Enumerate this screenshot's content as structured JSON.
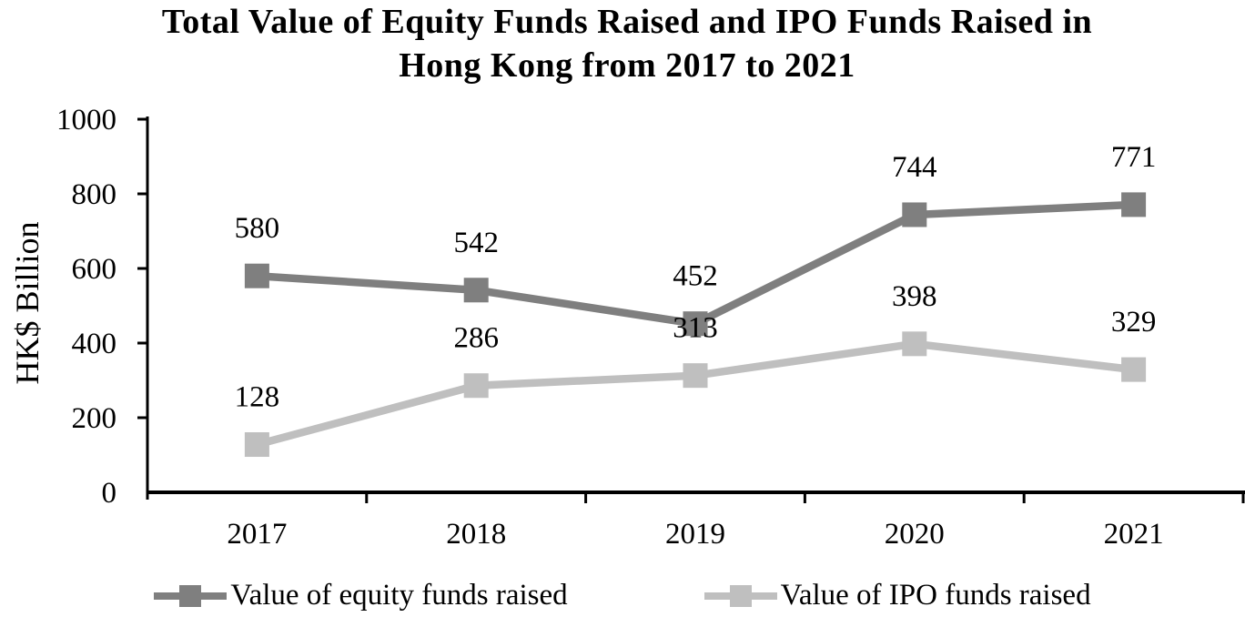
{
  "header": {
    "title_line1": "Total Value of Equity Funds Raised and IPO Funds Raised in",
    "title_line2": "Hong Kong from 2017 to 2021"
  },
  "chart_data": {
    "type": "line",
    "title": "Total Value of Equity Funds Raised and IPO Funds Raised in Hong Kong from 2017 to 2021",
    "xlabel": "",
    "ylabel": "HK$ Billion",
    "categories": [
      "2017",
      "2018",
      "2019",
      "2020",
      "2021"
    ],
    "series": [
      {
        "name": "Value of equity funds raised",
        "color": "#7f7f7f",
        "values": [
          580,
          542,
          452,
          744,
          771
        ]
      },
      {
        "name": "Value of IPO funds raised",
        "color": "#bfbfbf",
        "values": [
          128,
          286,
          313,
          398,
          329
        ]
      }
    ],
    "ylim": [
      0,
      1000
    ],
    "yticks": [
      0,
      200,
      400,
      600,
      800,
      1000
    ],
    "grid": false,
    "data_labels": true,
    "legend_position": "bottom",
    "axis_color": "#000000",
    "background_color": "#ffffff"
  }
}
